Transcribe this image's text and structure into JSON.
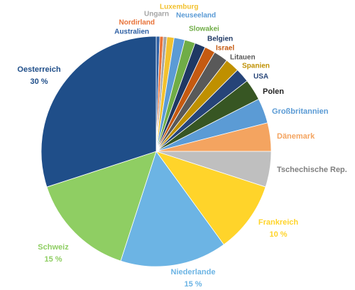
{
  "chart_data": {
    "type": "pie",
    "categories": [
      "Australien",
      "Nordirland",
      "Ungarn",
      "Luxemburg",
      "Neuseeland",
      "Slowakei",
      "Belgien",
      "Israel",
      "Litauen",
      "Spanien",
      "USA",
      "Polen",
      "Großbritannien",
      "Dänemark",
      "Tschechische Rep.",
      "Frankreich",
      "Niederlande",
      "Schweiz",
      "Oesterreich"
    ],
    "values": [
      0.5,
      0.5,
      0.5,
      1,
      1.5,
      1.5,
      1.5,
      1.5,
      2,
      2,
      2,
      3,
      3.5,
      4,
      5,
      10,
      15,
      15,
      30
    ],
    "value_labels": [
      null,
      null,
      null,
      null,
      null,
      null,
      null,
      null,
      null,
      null,
      null,
      null,
      null,
      null,
      null,
      "10 %",
      "15 %",
      "15 %",
      "30 %"
    ],
    "colors": [
      "#2e5fa3",
      "#e8733a",
      "#a5a5a5",
      "#f2c12e",
      "#5b9bd5",
      "#70ad47",
      "#1f3864",
      "#c55a11",
      "#595959",
      "#bf9000",
      "#264478",
      "#375623",
      "#5b9bd5",
      "#f4a460",
      "#bfbfbf",
      "#ffd42a",
      "#6cb4e4",
      "#8fce63",
      "#1f4e89"
    ]
  }
}
